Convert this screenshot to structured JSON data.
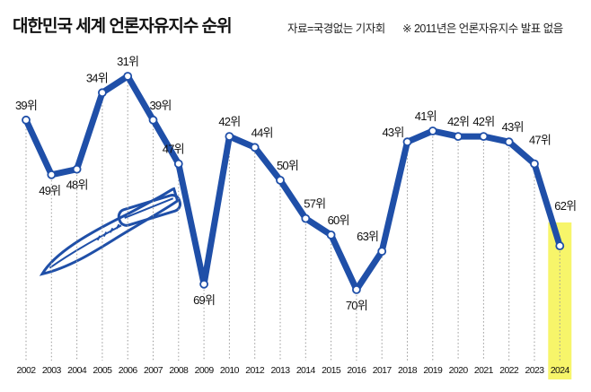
{
  "title": "대한민국 세계 언론자유지수 순위",
  "source": "자료=국경없는 기자회",
  "note": "※ 2011년은 언론자유지수 발표 없음",
  "chart_data": {
    "type": "line",
    "title": "대한민국 세계 언론자유지수 순위",
    "categories": [
      "2002",
      "2003",
      "2004",
      "2005",
      "2006",
      "2007",
      "2008",
      "2009",
      "2010",
      "2012",
      "2013",
      "2014",
      "2015",
      "2016",
      "2017",
      "2018",
      "2019",
      "2020",
      "2021",
      "2022",
      "2023",
      "2024"
    ],
    "values": [
      39,
      49,
      48,
      34,
      31,
      39,
      47,
      69,
      42,
      44,
      50,
      57,
      60,
      70,
      63,
      43,
      41,
      42,
      42,
      43,
      47,
      62
    ],
    "value_labels": [
      "39위",
      "49위",
      "48위",
      "34위",
      "31위",
      "39위",
      "47위",
      "69위",
      "42위",
      "44위",
      "50위",
      "57위",
      "60위",
      "70위",
      "63위",
      "43위",
      "41위",
      "42위",
      "42위",
      "43위",
      "47위",
      "62위"
    ],
    "y_axis": "inverted (rank, lower is better), not printed",
    "grid": "vertical dotted lines per year",
    "highlight": "2024",
    "colors": {
      "line": "#1f4fa8",
      "highlight": "#f7f56a",
      "highlight_label": "#1f4fa8"
    }
  }
}
